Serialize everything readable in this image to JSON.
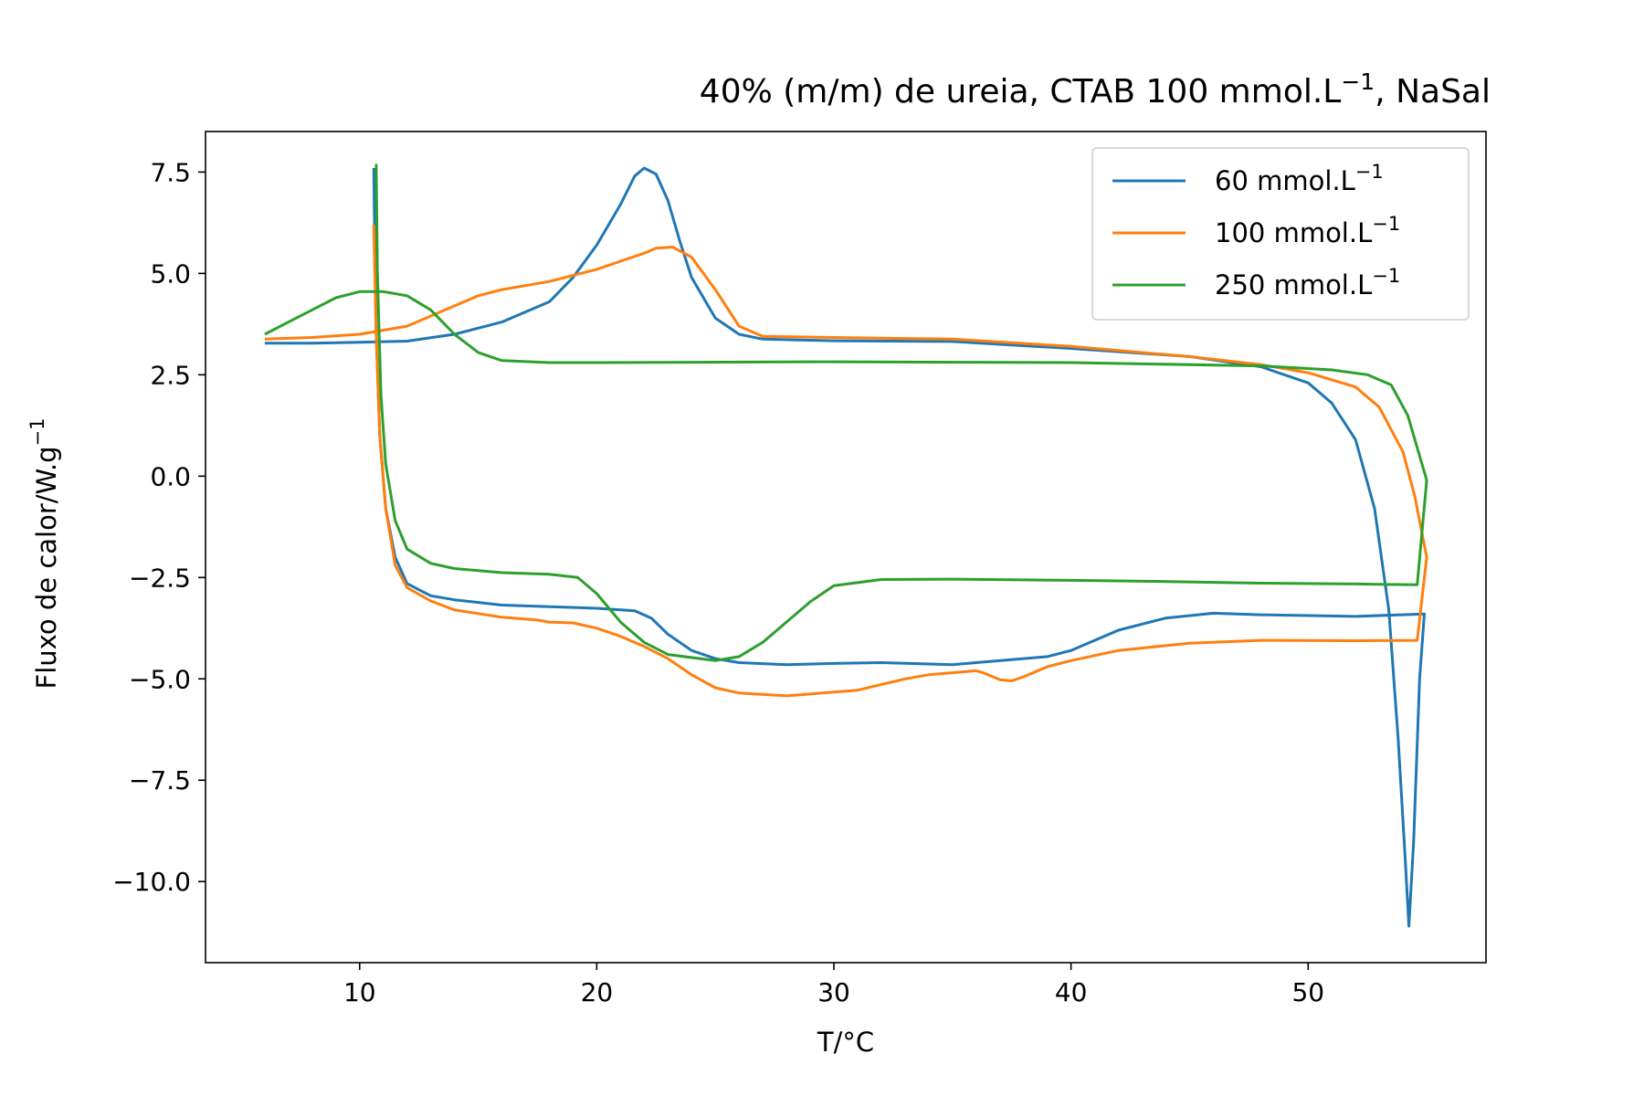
{
  "chart_data": {
    "type": "line",
    "title": "40% (m/m) de ureia, CTAB 100 mmol.L",
    "title_sup": "−1",
    "title_suffix": ", NaSal",
    "xlabel": "T/°C",
    "ylabel": "Fluxo de calor/W.g",
    "ylabel_sup": "−1",
    "xlim": [
      3.5,
      57.5
    ],
    "ylim": [
      -12.0,
      8.5
    ],
    "xticks": [
      10,
      20,
      30,
      40,
      50
    ],
    "xtick_labels": [
      "10",
      "20",
      "30",
      "40",
      "50"
    ],
    "yticks": [
      7.5,
      5.0,
      2.5,
      0.0,
      -2.5,
      -5.0,
      -7.5,
      -10.0
    ],
    "ytick_labels": [
      "7.5",
      "5.0",
      "2.5",
      "0.0",
      "−2.5",
      "−5.0",
      "−7.5",
      "−10.0"
    ],
    "grid": false,
    "legend_position": "upper-right",
    "series": [
      {
        "name": "60 mmol.L",
        "name_sup": "−1",
        "color": "#1f77b4",
        "points": [
          [
            6,
            3.28
          ],
          [
            8,
            3.28
          ],
          [
            10,
            3.3
          ],
          [
            12,
            3.33
          ],
          [
            14,
            3.5
          ],
          [
            16,
            3.8
          ],
          [
            18,
            4.3
          ],
          [
            19,
            4.9
          ],
          [
            20,
            5.7
          ],
          [
            21,
            6.7
          ],
          [
            21.6,
            7.4
          ],
          [
            22,
            7.6
          ],
          [
            22.5,
            7.45
          ],
          [
            23,
            6.8
          ],
          [
            23.5,
            5.8
          ],
          [
            24,
            4.9
          ],
          [
            25,
            3.9
          ],
          [
            26,
            3.5
          ],
          [
            27,
            3.38
          ],
          [
            30,
            3.34
          ],
          [
            35,
            3.32
          ],
          [
            40,
            3.15
          ],
          [
            45,
            2.95
          ],
          [
            48,
            2.7
          ],
          [
            50,
            2.3
          ],
          [
            51,
            1.8
          ],
          [
            52,
            0.9
          ],
          [
            52.8,
            -0.8
          ],
          [
            53.4,
            -3.3
          ],
          [
            53.8,
            -6.5
          ],
          [
            54.1,
            -9.5
          ],
          [
            54.25,
            -11.1
          ],
          [
            54.45,
            -9.0
          ],
          [
            54.7,
            -5.0
          ],
          [
            54.9,
            -3.4
          ],
          [
            52,
            -3.46
          ],
          [
            48,
            -3.42
          ],
          [
            46,
            -3.38
          ],
          [
            44,
            -3.5
          ],
          [
            42,
            -3.8
          ],
          [
            40,
            -4.3
          ],
          [
            39,
            -4.45
          ],
          [
            38,
            -4.5
          ],
          [
            36,
            -4.6
          ],
          [
            35,
            -4.65
          ],
          [
            32,
            -4.6
          ],
          [
            30,
            -4.62
          ],
          [
            28,
            -4.65
          ],
          [
            26,
            -4.6
          ],
          [
            25,
            -4.5
          ],
          [
            24,
            -4.3
          ],
          [
            23,
            -3.9
          ],
          [
            22.3,
            -3.5
          ],
          [
            21.6,
            -3.32
          ],
          [
            20,
            -3.26
          ],
          [
            18,
            -3.22
          ],
          [
            16,
            -3.18
          ],
          [
            14,
            -3.05
          ],
          [
            13,
            -2.95
          ],
          [
            12,
            -2.65
          ],
          [
            11.5,
            -2.0
          ],
          [
            11.1,
            -0.8
          ],
          [
            10.85,
            1.0
          ],
          [
            10.7,
            3.5
          ],
          [
            10.62,
            6.5
          ],
          [
            10.6,
            7.6
          ]
        ]
      },
      {
        "name": "100 mmol.L",
        "name_sup": "−1",
        "color": "#ff7f0e",
        "points": [
          [
            6,
            3.38
          ],
          [
            8,
            3.42
          ],
          [
            10,
            3.5
          ],
          [
            12,
            3.7
          ],
          [
            14,
            4.2
          ],
          [
            15,
            4.45
          ],
          [
            16,
            4.6
          ],
          [
            18,
            4.8
          ],
          [
            20,
            5.1
          ],
          [
            21,
            5.3
          ],
          [
            22,
            5.5
          ],
          [
            22.5,
            5.62
          ],
          [
            23.2,
            5.65
          ],
          [
            24,
            5.4
          ],
          [
            25,
            4.6
          ],
          [
            26,
            3.7
          ],
          [
            27,
            3.45
          ],
          [
            30,
            3.42
          ],
          [
            35,
            3.38
          ],
          [
            40,
            3.2
          ],
          [
            45,
            2.95
          ],
          [
            48,
            2.75
          ],
          [
            50,
            2.55
          ],
          [
            52,
            2.2
          ],
          [
            53,
            1.7
          ],
          [
            54,
            0.6
          ],
          [
            54.5,
            -0.5
          ],
          [
            55,
            -2.0
          ],
          [
            54.6,
            -4.05
          ],
          [
            52,
            -4.06
          ],
          [
            48,
            -4.05
          ],
          [
            45,
            -4.12
          ],
          [
            42,
            -4.3
          ],
          [
            40,
            -4.55
          ],
          [
            39,
            -4.7
          ],
          [
            38,
            -4.95
          ],
          [
            37.5,
            -5.05
          ],
          [
            37,
            -5.02
          ],
          [
            36.3,
            -4.85
          ],
          [
            36,
            -4.8
          ],
          [
            34,
            -4.9
          ],
          [
            33,
            -5.0
          ],
          [
            31,
            -5.28
          ],
          [
            28,
            -5.42
          ],
          [
            26,
            -5.35
          ],
          [
            25,
            -5.22
          ],
          [
            24,
            -4.9
          ],
          [
            23,
            -4.5
          ],
          [
            22,
            -4.2
          ],
          [
            21,
            -3.95
          ],
          [
            20,
            -3.75
          ],
          [
            19,
            -3.62
          ],
          [
            18,
            -3.6
          ],
          [
            17.5,
            -3.55
          ],
          [
            16,
            -3.48
          ],
          [
            14,
            -3.3
          ],
          [
            13,
            -3.08
          ],
          [
            12,
            -2.75
          ],
          [
            11.5,
            -2.2
          ],
          [
            11.1,
            -0.8
          ],
          [
            10.85,
            1.0
          ],
          [
            10.7,
            3.5
          ],
          [
            10.62,
            5.5
          ],
          [
            10.6,
            6.2
          ]
        ]
      },
      {
        "name": "250 mmol.L",
        "name_sup": "−1",
        "color": "#2ca02c",
        "points": [
          [
            6,
            3.5
          ],
          [
            7,
            3.8
          ],
          [
            8,
            4.1
          ],
          [
            9,
            4.4
          ],
          [
            10,
            4.55
          ],
          [
            11,
            4.55
          ],
          [
            12,
            4.45
          ],
          [
            13,
            4.1
          ],
          [
            14,
            3.5
          ],
          [
            15,
            3.05
          ],
          [
            16,
            2.85
          ],
          [
            18,
            2.8
          ],
          [
            20,
            2.8
          ],
          [
            30,
            2.82
          ],
          [
            40,
            2.8
          ],
          [
            48,
            2.72
          ],
          [
            51,
            2.62
          ],
          [
            52.5,
            2.5
          ],
          [
            53.5,
            2.25
          ],
          [
            54.2,
            1.5
          ],
          [
            54.8,
            0.3
          ],
          [
            55,
            -0.1
          ],
          [
            54.6,
            -2.68
          ],
          [
            52,
            -2.66
          ],
          [
            48,
            -2.64
          ],
          [
            44,
            -2.6
          ],
          [
            40,
            -2.57
          ],
          [
            35,
            -2.54
          ],
          [
            32,
            -2.55
          ],
          [
            30,
            -2.7
          ],
          [
            29,
            -3.1
          ],
          [
            28,
            -3.6
          ],
          [
            27,
            -4.1
          ],
          [
            26,
            -4.45
          ],
          [
            25,
            -4.55
          ],
          [
            23,
            -4.4
          ],
          [
            22,
            -4.1
          ],
          [
            21,
            -3.6
          ],
          [
            20,
            -2.9
          ],
          [
            19.2,
            -2.5
          ],
          [
            18,
            -2.42
          ],
          [
            16,
            -2.38
          ],
          [
            14,
            -2.28
          ],
          [
            13,
            -2.15
          ],
          [
            12,
            -1.8
          ],
          [
            11.5,
            -1.1
          ],
          [
            11.1,
            0.3
          ],
          [
            10.9,
            2.0
          ],
          [
            10.75,
            5.0
          ],
          [
            10.7,
            7.7
          ]
        ]
      }
    ]
  }
}
